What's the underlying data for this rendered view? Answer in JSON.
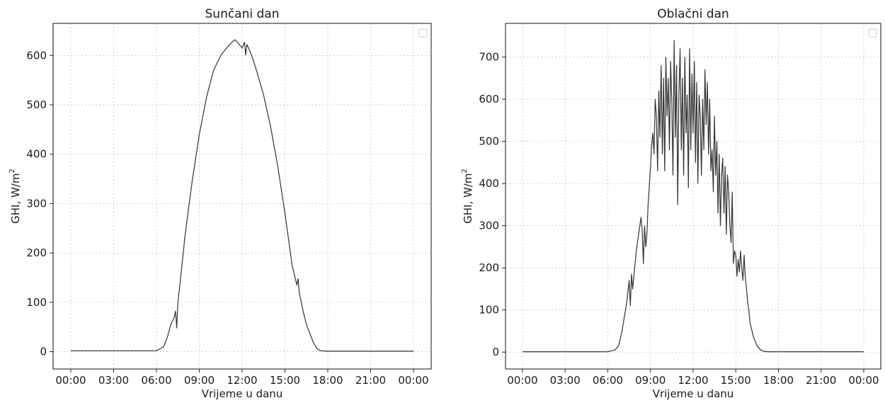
{
  "chart_data": [
    {
      "type": "line",
      "title": "Sunčani dan",
      "xlabel": "Vrijeme u danu",
      "ylabel_main": "GHI, W/m",
      "ylabel_sup": "2",
      "xlim": [
        "00:00",
        "00:00 (+1 day)"
      ],
      "ylim": [
        -35,
        665
      ],
      "x_ticks": [
        "00:00",
        "03:00",
        "06:00",
        "09:00",
        "12:00",
        "15:00",
        "18:00",
        "21:00",
        "00:00"
      ],
      "y_ticks": [
        0,
        100,
        200,
        300,
        400,
        500,
        600
      ],
      "grid": true,
      "legend": "top-right (empty)",
      "series_color": "#333333",
      "series": [
        {
          "x": [
            "00:00",
            "06:00",
            "06:30",
            "06:45",
            "07:00",
            "07:15",
            "07:20",
            "07:25",
            "07:30",
            "07:45",
            "08:00",
            "08:30",
            "09:00",
            "09:30",
            "10:00",
            "10:30",
            "11:00",
            "11:15",
            "11:30",
            "11:45",
            "12:00",
            "12:10",
            "12:15",
            "12:20",
            "12:30",
            "12:45",
            "13:00",
            "13:30",
            "14:00",
            "14:30",
            "15:00",
            "15:30",
            "15:50",
            "15:55",
            "16:00",
            "16:15",
            "16:30",
            "17:00",
            "17:15",
            "17:30",
            "18:00",
            "24:00"
          ],
          "y": [
            2,
            2,
            10,
            28,
            55,
            70,
            82,
            48,
            100,
            165,
            235,
            345,
            440,
            515,
            570,
            600,
            618,
            626,
            632,
            624,
            615,
            627,
            601,
            622,
            612,
            593,
            570,
            520,
            455,
            375,
            280,
            175,
            135,
            148,
            120,
            85,
            55,
            18,
            6,
            2,
            1,
            1
          ]
        }
      ]
    },
    {
      "type": "line",
      "title": "Oblačni dan",
      "xlabel": "Vrijeme u danu",
      "ylabel_main": "GHI, W/m",
      "ylabel_sup": "2",
      "xlim": [
        "00:00",
        "00:00 (+1 day)"
      ],
      "ylim": [
        -40,
        780
      ],
      "x_ticks": [
        "00:00",
        "03:00",
        "06:00",
        "09:00",
        "12:00",
        "15:00",
        "18:00",
        "21:00",
        "00:00"
      ],
      "y_ticks": [
        0,
        100,
        200,
        300,
        400,
        500,
        600,
        700
      ],
      "grid": true,
      "legend": "top-right (empty)",
      "series_color": "#333333",
      "series": [
        {
          "x": [
            "00:00",
            "06:00",
            "06:30",
            "06:45",
            "07:00",
            "07:20",
            "07:30",
            "07:35",
            "07:40",
            "07:45",
            "08:00",
            "08:15",
            "08:20",
            "08:25",
            "08:30",
            "08:35",
            "08:40",
            "08:45",
            "08:50",
            "09:00",
            "09:05",
            "09:10",
            "09:15",
            "09:20",
            "09:25",
            "09:30",
            "09:35",
            "09:40",
            "09:45",
            "09:50",
            "09:55",
            "10:00",
            "10:05",
            "10:10",
            "10:15",
            "10:20",
            "10:25",
            "10:30",
            "10:35",
            "10:40",
            "10:45",
            "10:50",
            "10:55",
            "11:00",
            "11:05",
            "11:10",
            "11:15",
            "11:20",
            "11:25",
            "11:30",
            "11:35",
            "11:40",
            "11:45",
            "11:50",
            "11:55",
            "12:00",
            "12:05",
            "12:10",
            "12:15",
            "12:20",
            "12:25",
            "12:30",
            "12:35",
            "12:40",
            "12:45",
            "12:50",
            "12:55",
            "13:00",
            "13:05",
            "13:10",
            "13:15",
            "13:20",
            "13:25",
            "13:30",
            "13:35",
            "13:40",
            "13:45",
            "13:50",
            "13:55",
            "14:00",
            "14:05",
            "14:10",
            "14:15",
            "14:20",
            "14:25",
            "14:30",
            "14:35",
            "14:40",
            "14:45",
            "14:50",
            "14:55",
            "15:00",
            "15:05",
            "15:10",
            "15:15",
            "15:20",
            "15:25",
            "15:30",
            "15:35",
            "15:40",
            "15:45",
            "15:50",
            "15:55",
            "16:00",
            "16:15",
            "16:30",
            "16:45",
            "17:00",
            "17:15",
            "17:30",
            "18:00",
            "24:00"
          ],
          "y": [
            1,
            1,
            5,
            15,
            50,
            120,
            170,
            110,
            185,
            150,
            240,
            300,
            320,
            290,
            210,
            300,
            250,
            280,
            350,
            440,
            490,
            520,
            470,
            600,
            560,
            430,
            620,
            510,
            680,
            470,
            650,
            430,
            700,
            560,
            650,
            480,
            690,
            590,
            420,
            740,
            510,
            680,
            350,
            610,
            720,
            480,
            650,
            420,
            700,
            520,
            610,
            390,
            720,
            480,
            660,
            520,
            690,
            450,
            640,
            400,
            610,
            560,
            420,
            600,
            480,
            670,
            540,
            640,
            470,
            600,
            430,
            480,
            380,
            560,
            420,
            500,
            330,
            470,
            300,
            420,
            460,
            330,
            440,
            280,
            420,
            380,
            300,
            260,
            380,
            210,
            240,
            230,
            180,
            220,
            190,
            240,
            200,
            170,
            230,
            180,
            150,
            120,
            100,
            70,
            35,
            15,
            5,
            2,
            1,
            1,
            1,
            1
          ]
        }
      ]
    }
  ]
}
